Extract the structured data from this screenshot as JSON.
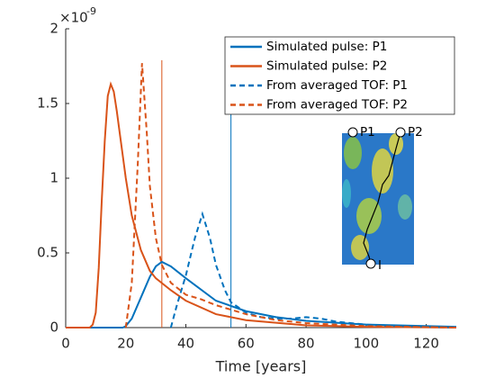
{
  "chart_data": {
    "type": "line",
    "xlabel": "Time [years]",
    "y_multiplier": "×10",
    "y_exponent": "-9",
    "xlim": [
      0,
      130
    ],
    "xticks": [
      0,
      20,
      40,
      60,
      80,
      100,
      120
    ],
    "ylim": [
      0,
      2
    ],
    "yticks": [
      0,
      0.5,
      1,
      1.5,
      2
    ],
    "series": [
      {
        "name": "Simulated pulse: P1",
        "color": "#0072BD",
        "dashed": false,
        "x": [
          0,
          19,
          20,
          22,
          25,
          28,
          30,
          32,
          35,
          40,
          50,
          60,
          70,
          80,
          100,
          130
        ],
        "values": [
          0,
          0,
          0.01,
          0.06,
          0.2,
          0.34,
          0.41,
          0.44,
          0.41,
          0.33,
          0.18,
          0.11,
          0.07,
          0.045,
          0.02,
          0.005
        ]
      },
      {
        "name": "Simulated pulse: P2",
        "color": "#D95319",
        "dashed": false,
        "x": [
          0,
          8,
          9,
          10,
          11,
          12,
          13,
          14,
          15,
          16,
          17,
          18,
          20,
          22,
          25,
          28,
          30,
          35,
          40,
          50,
          60,
          80,
          100,
          130
        ],
        "values": [
          0,
          0,
          0.02,
          0.1,
          0.4,
          0.85,
          1.25,
          1.55,
          1.63,
          1.58,
          1.45,
          1.3,
          1.0,
          0.75,
          0.52,
          0.38,
          0.33,
          0.25,
          0.18,
          0.09,
          0.05,
          0.015,
          0.005,
          0
        ]
      },
      {
        "name": "From averaged TOF: P1",
        "color": "#0072BD",
        "dashed": true,
        "x": [
          35,
          37,
          40,
          43,
          45.5,
          48,
          50,
          53,
          55,
          60,
          65,
          70,
          75,
          80,
          85,
          90,
          100,
          110,
          130
        ],
        "values": [
          0,
          0.15,
          0.35,
          0.6,
          0.76,
          0.6,
          0.42,
          0.25,
          0.17,
          0.1,
          0.07,
          0.06,
          0.06,
          0.07,
          0.06,
          0.04,
          0.02,
          0.01,
          0
        ]
      },
      {
        "name": "From averaged TOF: P2",
        "color": "#D95319",
        "dashed": true,
        "x": [
          20,
          22,
          24,
          25.4,
          27,
          28,
          30,
          32,
          35,
          40,
          45,
          50,
          55,
          60,
          70,
          80,
          100,
          130
        ],
        "values": [
          0,
          0.3,
          1.1,
          1.77,
          1.3,
          0.95,
          0.6,
          0.42,
          0.3,
          0.22,
          0.19,
          0.15,
          0.12,
          0.09,
          0.05,
          0.03,
          0.01,
          0
        ]
      }
    ],
    "vlines": [
      {
        "x": 32,
        "top": 1.79,
        "color": "#D95319"
      },
      {
        "x": 55,
        "top": 1.69,
        "color": "#0072BD"
      }
    ],
    "inset_labels": [
      "P1",
      "P2",
      "I"
    ]
  }
}
